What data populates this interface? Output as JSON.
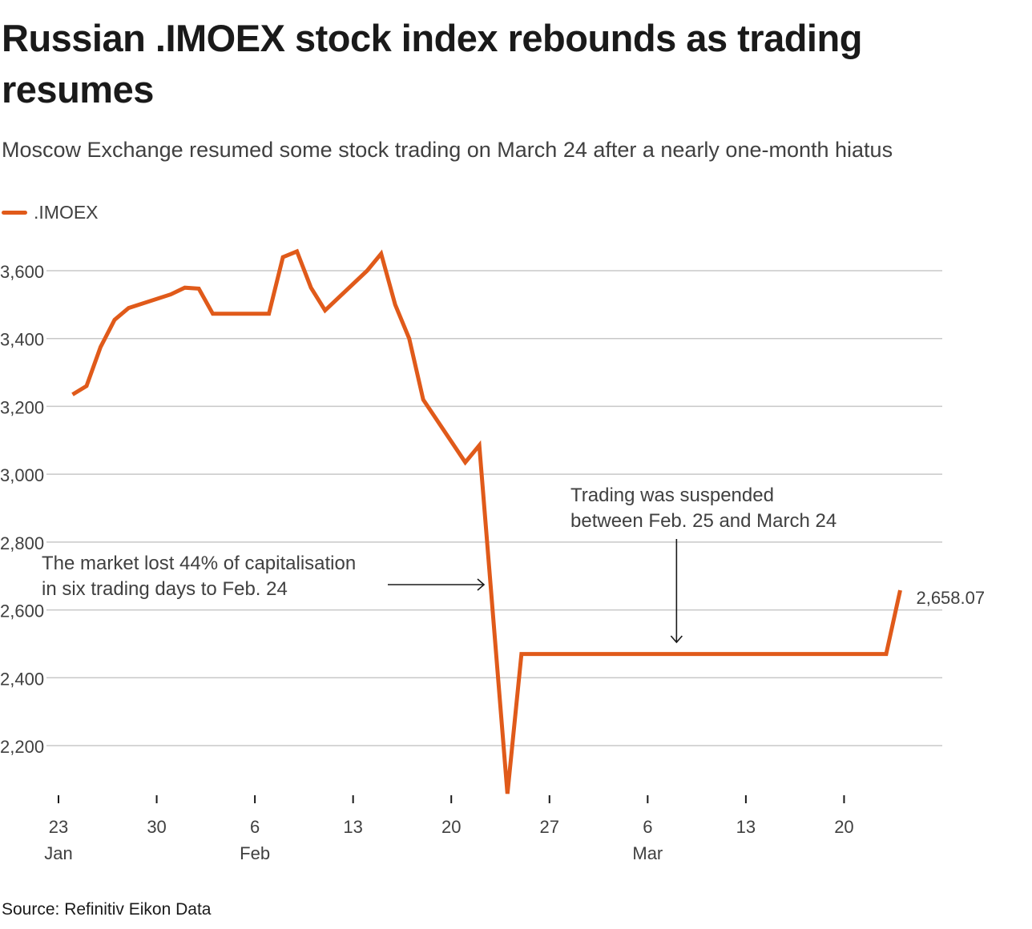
{
  "title": "Russian .IMOEX stock index rebounds as trading resumes",
  "subtitle": "Moscow Exchange resumed some stock trading on March 24 after a nearly one-month hiatus",
  "source": "Source: Refinitiv Eikon Data",
  "colors": {
    "series": "#e05a1a",
    "grid": "#c8c8c8",
    "text": "#404040"
  },
  "chart_data": {
    "type": "line",
    "series": [
      {
        "name": ".IMOEX",
        "x": [
          "2022-01-24",
          "2022-01-25",
          "2022-01-26",
          "2022-01-27",
          "2022-01-28",
          "2022-01-31",
          "2022-02-01",
          "2022-02-02",
          "2022-02-03",
          "2022-02-04",
          "2022-02-07",
          "2022-02-08",
          "2022-02-09",
          "2022-02-10",
          "2022-02-11",
          "2022-02-14",
          "2022-02-15",
          "2022-02-16",
          "2022-02-17",
          "2022-02-18",
          "2022-02-21",
          "2022-02-22",
          "2022-02-24",
          "2022-02-25",
          "2022-03-24"
        ],
        "values": [
          3235,
          3260,
          3375,
          3455,
          3490,
          3530,
          3550,
          3547,
          3473,
          3473,
          3473,
          3640,
          3657,
          3550,
          3483,
          3600,
          3650,
          3500,
          3400,
          3220,
          3035,
          3085,
          2058,
          2470,
          2658.07
        ]
      }
    ],
    "suspension": {
      "from": "2022-02-25",
      "to": "2022-03-24"
    },
    "xlim": [
      "2022-01-23",
      "2022-03-27"
    ],
    "ylim": [
      2060,
      3720
    ],
    "yticks": [
      2200,
      2400,
      2600,
      2800,
      3000,
      3200,
      3400,
      3600
    ],
    "ytick_labels": [
      "2,200",
      "2,400",
      "2,600",
      "2,800",
      "3,000",
      "3,200",
      "3,400",
      "3,600"
    ],
    "xticks": [
      {
        "date": "2022-01-23",
        "day": "23",
        "month": "Jan"
      },
      {
        "date": "2022-01-30",
        "day": "30",
        "month": ""
      },
      {
        "date": "2022-02-06",
        "day": "6",
        "month": "Feb"
      },
      {
        "date": "2022-02-13",
        "day": "13",
        "month": ""
      },
      {
        "date": "2022-02-20",
        "day": "20",
        "month": ""
      },
      {
        "date": "2022-02-27",
        "day": "27",
        "month": ""
      },
      {
        "date": "2022-03-06",
        "day": "6",
        "month": "Mar"
      },
      {
        "date": "2022-03-13",
        "day": "13",
        "month": ""
      },
      {
        "date": "2022-03-20",
        "day": "20",
        "month": ""
      }
    ],
    "end_label": "2,658.07",
    "annotations": [
      {
        "lines": [
          "The market lost 44% of capitalisation",
          "in six trading days to Feb. 24"
        ],
        "points_to": "2022-02-24",
        "arrow": "right"
      },
      {
        "lines": [
          "Trading was suspended",
          "between Feb. 25 and March 24"
        ],
        "points_to": "2022-03-08",
        "arrow": "down"
      }
    ],
    "grid": true,
    "legend": "top-left"
  }
}
